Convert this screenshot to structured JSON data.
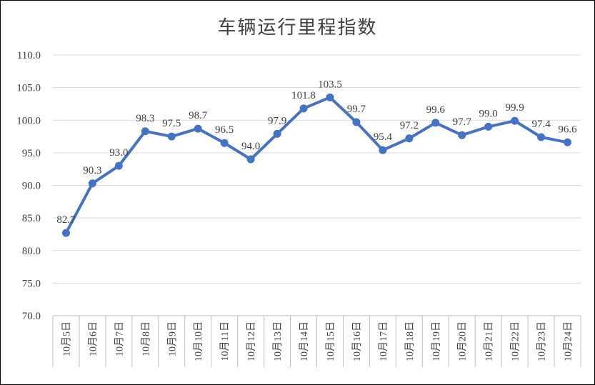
{
  "chart_data": {
    "type": "line",
    "title": "车辆运行里程指数",
    "xlabel": "",
    "ylabel": "",
    "categories": [
      "10月5日",
      "10月6日",
      "10月7日",
      "10月8日",
      "10月9日",
      "10月10日",
      "10月11日",
      "10月12日",
      "10月13日",
      "10月14日",
      "10月15日",
      "10月16日",
      "10月17日",
      "10月18日",
      "10月19日",
      "10月20日",
      "10月21日",
      "10月22日",
      "10月23日",
      "10月24日"
    ],
    "series": [
      {
        "values": [
          82.7,
          90.3,
          93.0,
          98.3,
          97.5,
          98.7,
          96.5,
          94.0,
          97.9,
          101.8,
          103.5,
          99.7,
          95.4,
          97.2,
          99.6,
          97.7,
          99.0,
          99.9,
          97.4,
          96.6
        ],
        "labels": [
          "82.7",
          "90.3",
          "93.0",
          "98.3",
          "97.5",
          "98.7",
          "96.5",
          "94.0",
          "97.9",
          "101.8",
          "103.5",
          "99.7",
          "95.4",
          "97.2",
          "99.6",
          "97.7",
          "99.0",
          "99.9",
          "97.4",
          "96.6"
        ],
        "color": "#4472C4"
      }
    ],
    "ylim": [
      70,
      110
    ],
    "yticks": [
      70,
      75,
      80,
      85,
      90,
      95,
      100,
      105,
      110
    ],
    "ytick_labels": [
      "70.0",
      "75.0",
      "80.0",
      "85.0",
      "90.0",
      "95.0",
      "100.0",
      "105.0",
      "110.0"
    ],
    "grid": true,
    "legend": "none",
    "gridline_color": "#d9d9d9",
    "axis_color": "#bfbfbf",
    "text_color": "#404040"
  }
}
